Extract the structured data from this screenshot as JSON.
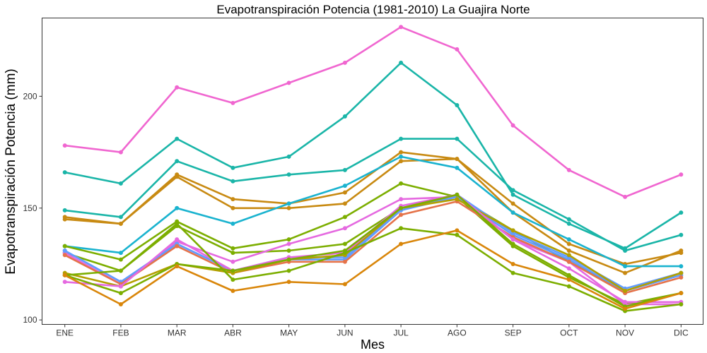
{
  "chart_data": {
    "type": "line",
    "title": "Evapotranspiración Potencia (1981-2010)  La Guajira Norte",
    "xlabel": "Mes",
    "ylabel": "Evapotranspiración Potencia  (mm)",
    "categories": [
      "ENE",
      "FEB",
      "MAR",
      "ABR",
      "MAY",
      "JUN",
      "JUL",
      "AGO",
      "SEP",
      "OCT",
      "NOV",
      "DIC"
    ],
    "ylim": [
      98,
      235
    ],
    "yticks": [
      100,
      150,
      200
    ],
    "grid": false,
    "legend": "none",
    "series": [
      {
        "color": "#F066D0",
        "values": [
          178,
          175,
          204,
          197,
          206,
          215,
          231,
          221,
          187,
          167,
          155,
          165
        ]
      },
      {
        "color": "#1AB5A8",
        "values": [
          166,
          161,
          181,
          168,
          173,
          191,
          215,
          196,
          156,
          143,
          132,
          148
        ]
      },
      {
        "color": "#1AB5A8",
        "values": [
          149,
          146,
          171,
          162,
          165,
          167,
          181,
          181,
          158,
          145,
          131,
          138
        ]
      },
      {
        "color": "#C88A12",
        "values": [
          146,
          143,
          165,
          154,
          152,
          157,
          175,
          172,
          152,
          134,
          125,
          130
        ]
      },
      {
        "color": "#C88A12",
        "values": [
          145,
          143,
          164,
          150,
          150,
          152,
          171,
          172,
          148,
          131,
          121,
          131
        ]
      },
      {
        "color": "#1AB3CF",
        "values": [
          133,
          130,
          150,
          143,
          152,
          160,
          173,
          168,
          148,
          136,
          124,
          124
        ]
      },
      {
        "color": "#7CAE00",
        "values": [
          133,
          127,
          144,
          132,
          136,
          146,
          161,
          155,
          140,
          126,
          113,
          121
        ]
      },
      {
        "color": "#7CAE00",
        "values": [
          130,
          122,
          142,
          130,
          131,
          134,
          150,
          155,
          133,
          119,
          107,
          112
        ]
      },
      {
        "color": "#E569E0",
        "values": [
          130,
          116,
          135,
          126,
          134,
          141,
          154,
          155,
          136,
          126,
          107,
          107
        ]
      },
      {
        "color": "#619CFF",
        "values": [
          131,
          117,
          134,
          122,
          128,
          128,
          150,
          156,
          139,
          128,
          114,
          121
        ]
      },
      {
        "color": "#619CFF",
        "values": [
          131,
          117,
          134,
          122,
          127,
          127,
          149,
          155,
          138,
          127,
          113,
          120
        ]
      },
      {
        "color": "#E5734A",
        "values": [
          129,
          116,
          133,
          121,
          126,
          126,
          147,
          153,
          137,
          126,
          112,
          119
        ]
      },
      {
        "color": "#B3A000",
        "values": [
          121,
          115,
          125,
          121,
          127,
          129,
          150,
          154,
          140,
          129,
          113,
          121
        ]
      },
      {
        "color": "#E569E0",
        "values": [
          117,
          115,
          136,
          122,
          128,
          130,
          151,
          156,
          136,
          123,
          108,
          108
        ]
      },
      {
        "color": "#7CAE00",
        "values": [
          120,
          122,
          143,
          118,
          122,
          130,
          141,
          138,
          121,
          115,
          104,
          107
        ]
      },
      {
        "color": "#7CAE00",
        "values": [
          120,
          112,
          125,
          122,
          127,
          131,
          150,
          156,
          134,
          120,
          106,
          112
        ]
      },
      {
        "color": "#D9860A",
        "values": [
          120,
          107,
          124,
          113,
          117,
          116,
          134,
          140,
          125,
          118,
          105,
          112
        ]
      }
    ]
  }
}
